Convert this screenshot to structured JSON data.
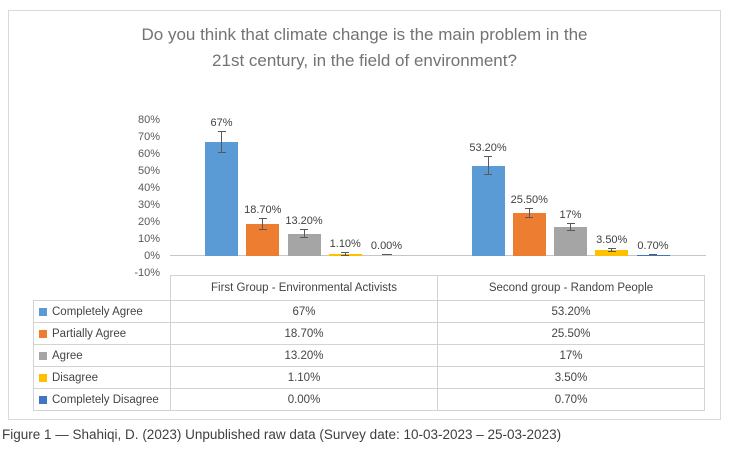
{
  "figure": {
    "title_line1": "Do you think that climate change is the main problem in the",
    "title_line2": "21st century, in the field of environment?",
    "caption": "Figure 1 — Shahiqi, D. (2023) Unpublished raw data (Survey date: 10-03-2023 – 25-03-2023)"
  },
  "chart_data": {
    "type": "bar",
    "title": "Do you think that climate change is the main problem in the 21st century, in the field of environment?",
    "categories": [
      "First Group - Environmental Activists",
      "Second group - Random People"
    ],
    "series": [
      {
        "name": "Completely Agree",
        "slug": "completely-agree",
        "color": "#5B9BD5",
        "values": [
          67,
          53.2
        ],
        "labels": [
          "67%",
          "53.20%"
        ],
        "errors": [
          6.5,
          5.5
        ]
      },
      {
        "name": "Partially Agree",
        "slug": "partially-agree",
        "color": "#ED7D31",
        "values": [
          18.7,
          25.5
        ],
        "labels": [
          "18.70%",
          "25.50%"
        ],
        "errors": [
          3.5,
          3
        ]
      },
      {
        "name": "Agree",
        "slug": "agree",
        "color": "#A5A5A5",
        "values": [
          13.2,
          17
        ],
        "labels": [
          "13.20%",
          "17%"
        ],
        "errors": [
          2.5,
          2.5
        ]
      },
      {
        "name": "Disagree",
        "slug": "disagree",
        "color": "#FFC000",
        "values": [
          1.1,
          3.5
        ],
        "labels": [
          "1.10%",
          "3.50%"
        ],
        "errors": [
          1.5,
          1
        ]
      },
      {
        "name": "Completely Disagree",
        "slug": "completely-disagree",
        "color": "#4472C4",
        "values": [
          0,
          0.7
        ],
        "labels": [
          "0.00%",
          "0.70%"
        ],
        "errors": [
          0.2,
          0.4
        ]
      }
    ],
    "y_axis": {
      "ticks": [
        "80%",
        "70%",
        "60%",
        "50%",
        "40%",
        "30%",
        "20%",
        "10%",
        "0%",
        "-10%"
      ],
      "tick_values": [
        80,
        70,
        60,
        50,
        40,
        30,
        20,
        10,
        0,
        -10
      ],
      "min": -10,
      "max": 80
    },
    "grid": false,
    "error_bars": true,
    "legend_position": "table-left-column"
  },
  "table": {
    "column_headers": [
      "First Group - Environmental Activists",
      "Second group - Random People"
    ],
    "rows": [
      {
        "label": "Completely Agree",
        "swatch": "#5B9BD5",
        "values": [
          "67%",
          "53.20%"
        ]
      },
      {
        "label": "Partially Agree",
        "swatch": "#ED7D31",
        "values": [
          "18.70%",
          "25.50%"
        ]
      },
      {
        "label": "Agree",
        "swatch": "#A5A5A5",
        "values": [
          "13.20%",
          "17%"
        ]
      },
      {
        "label": "Disagree",
        "swatch": "#FFC000",
        "values": [
          "1.10%",
          "3.50%"
        ]
      },
      {
        "label": "Completely Disagree",
        "swatch": "#4472C4",
        "values": [
          "0.00%",
          "0.70%"
        ]
      }
    ]
  }
}
